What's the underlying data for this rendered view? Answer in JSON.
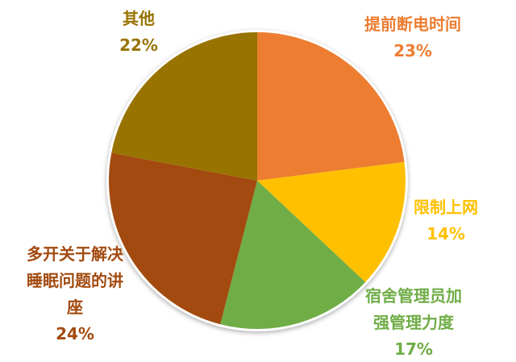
{
  "chart_data": {
    "type": "pie",
    "title": "",
    "direction": "clockwise",
    "start_angle_deg": 0,
    "legend": "none",
    "labels_position": "outside",
    "slices": [
      {
        "label": "提前断电时间",
        "label_lines": [
          "提前断电时间"
        ],
        "pct": "23%",
        "value": 23,
        "color": "#ED7D31"
      },
      {
        "label": "限制上网",
        "label_lines": [
          "限制上网"
        ],
        "pct": "14%",
        "value": 14,
        "color": "#FFC000"
      },
      {
        "label": "宿舍管理员加强管理力度",
        "label_lines": [
          "宿舍管理员加",
          "强管理力度"
        ],
        "pct": "17%",
        "value": 17,
        "color": "#70AD47"
      },
      {
        "label": "多开关于解决睡眠问题的讲座",
        "label_lines": [
          "多开关于解决",
          "睡眠问题的讲",
          "座"
        ],
        "pct": "24%",
        "value": 24,
        "color": "#A24A0F"
      },
      {
        "label": "其他",
        "label_lines": [
          "其他"
        ],
        "pct": "22%",
        "value": 22,
        "color": "#987300"
      }
    ],
    "ring_color": "#FFFFFF",
    "background": "#FFFFFF"
  }
}
